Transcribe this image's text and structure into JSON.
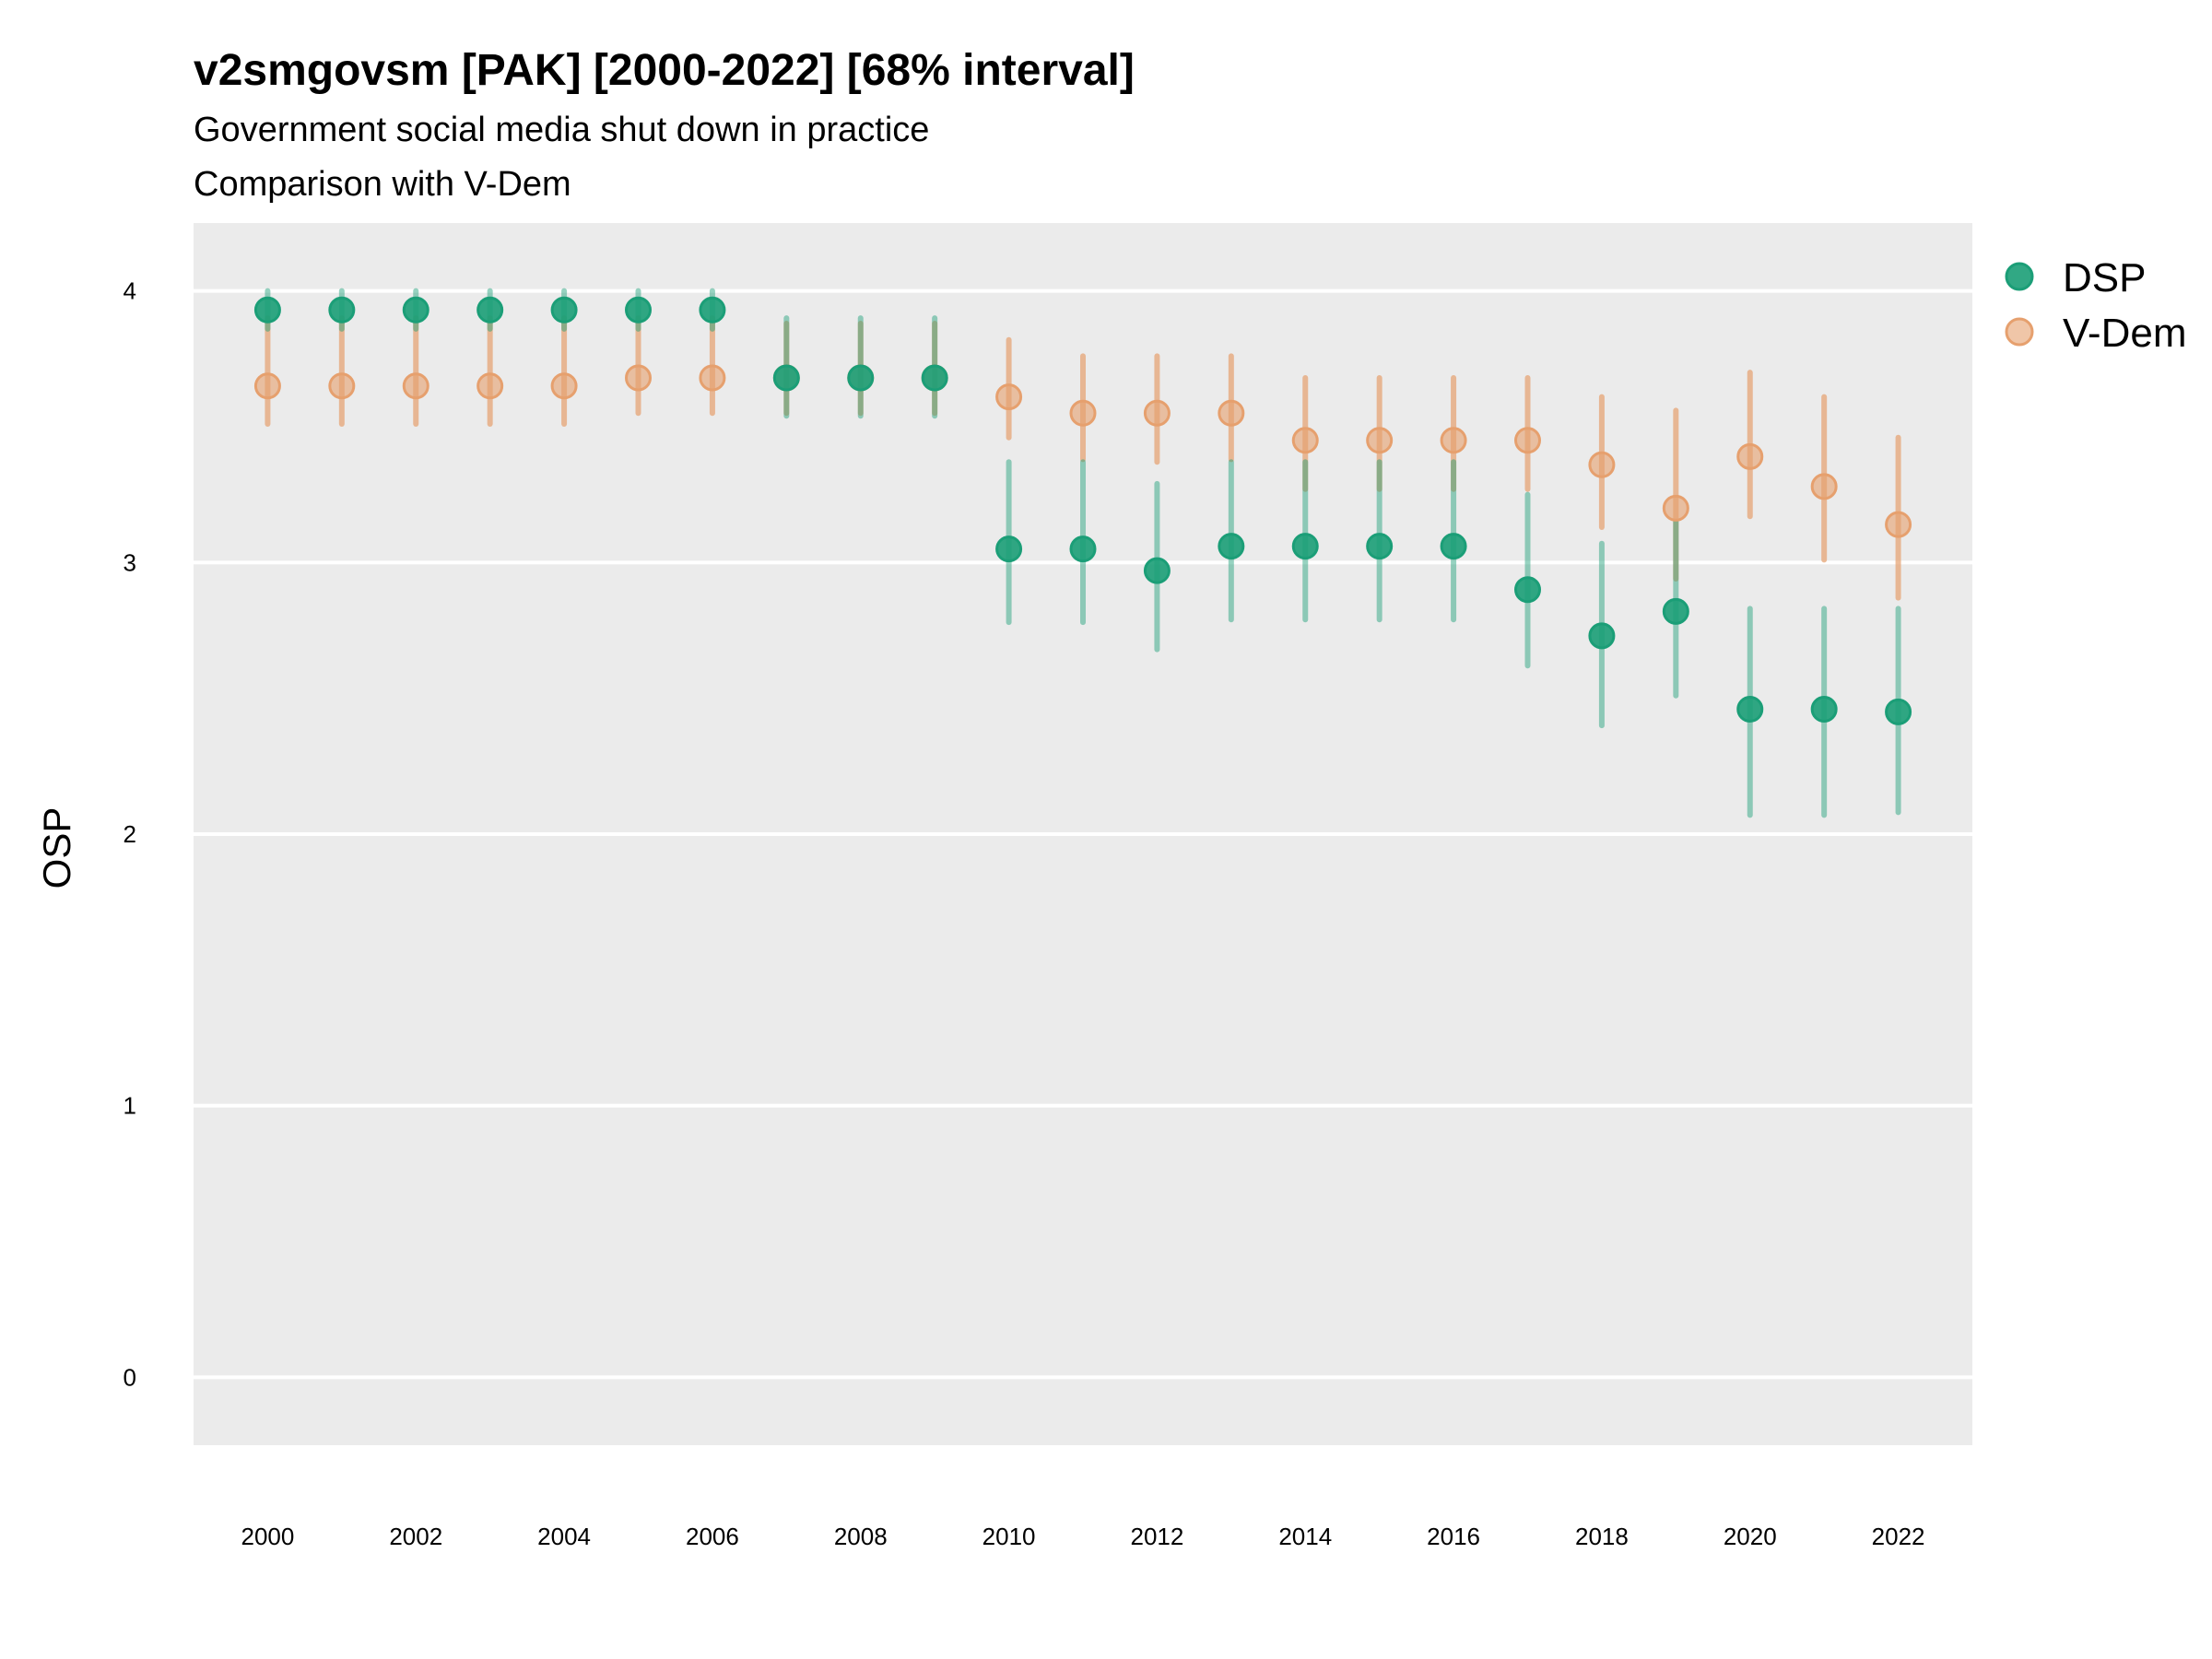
{
  "chart_data": {
    "type": "scatter",
    "title": "v2smgovsm [PAK] [2000-2022] [68% interval]",
    "subtitle": "Government social media shut down in practice",
    "subtitle2": "Comparison with V-Dem",
    "ylabel": "OSP",
    "xlabel": "",
    "xlim": [
      1999,
      2023
    ],
    "ylim": [
      -0.25,
      4.25
    ],
    "grid": true,
    "legend_position": "right",
    "x_ticks": [
      2000,
      2002,
      2004,
      2006,
      2008,
      2010,
      2012,
      2014,
      2016,
      2018,
      2020,
      2022
    ],
    "y_ticks": [
      0,
      1,
      2,
      3,
      4
    ],
    "x": [
      2000,
      2001,
      2002,
      2003,
      2004,
      2005,
      2006,
      2007,
      2008,
      2009,
      2010,
      2011,
      2012,
      2013,
      2014,
      2015,
      2016,
      2017,
      2018,
      2019,
      2020,
      2021,
      2022
    ],
    "series": [
      {
        "name": "DSP",
        "color": "#1b9e77",
        "values": [
          3.93,
          3.93,
          3.93,
          3.93,
          3.93,
          3.93,
          3.93,
          3.68,
          3.68,
          3.68,
          3.05,
          3.05,
          2.97,
          3.06,
          3.06,
          3.06,
          3.06,
          2.9,
          2.73,
          2.82,
          2.46,
          2.46,
          2.45
        ],
        "lower": [
          3.86,
          3.86,
          3.86,
          3.86,
          3.86,
          3.86,
          3.86,
          3.54,
          3.54,
          3.54,
          2.78,
          2.78,
          2.68,
          2.79,
          2.79,
          2.79,
          2.79,
          2.62,
          2.4,
          2.51,
          2.07,
          2.07,
          2.08
        ],
        "upper": [
          4.0,
          4.0,
          4.0,
          4.0,
          4.0,
          4.0,
          4.0,
          3.9,
          3.9,
          3.9,
          3.37,
          3.37,
          3.29,
          3.37,
          3.37,
          3.37,
          3.37,
          3.25,
          3.07,
          3.15,
          2.83,
          2.83,
          2.83
        ]
      },
      {
        "name": "V-Dem",
        "color": "#e6a06e",
        "values": [
          3.65,
          3.65,
          3.65,
          3.65,
          3.65,
          3.68,
          3.68,
          3.68,
          3.68,
          3.68,
          3.61,
          3.55,
          3.55,
          3.55,
          3.45,
          3.45,
          3.45,
          3.45,
          3.36,
          3.2,
          3.39,
          3.28,
          3.14
        ],
        "lower": [
          3.51,
          3.51,
          3.51,
          3.51,
          3.51,
          3.55,
          3.55,
          3.55,
          3.55,
          3.55,
          3.46,
          3.38,
          3.37,
          3.38,
          3.27,
          3.27,
          3.27,
          3.27,
          3.13,
          2.94,
          3.17,
          3.01,
          2.87
        ],
        "upper": [
          3.9,
          3.9,
          3.9,
          3.9,
          3.9,
          3.9,
          3.9,
          3.88,
          3.88,
          3.88,
          3.82,
          3.76,
          3.76,
          3.76,
          3.68,
          3.68,
          3.68,
          3.68,
          3.61,
          3.56,
          3.7,
          3.61,
          3.46
        ]
      }
    ]
  }
}
